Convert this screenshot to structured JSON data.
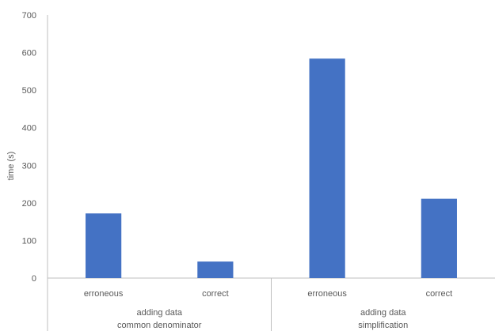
{
  "chart_data": {
    "type": "bar",
    "ylabel": "time (s)",
    "ylim": [
      0,
      700
    ],
    "yticks": [
      0,
      100,
      200,
      300,
      400,
      500,
      600,
      700
    ],
    "grid": false,
    "legend": "none",
    "bar_color": "#4472C4",
    "axis_color": "#BFBFBF",
    "text_color": "#595959",
    "groups": [
      {
        "label_line1": "adding data",
        "label_line2": "common denominator",
        "categories": [
          "erroneous",
          "correct"
        ],
        "values": [
          172,
          44
        ]
      },
      {
        "label_line1": "adding data",
        "label_line2": "simplification",
        "categories": [
          "erroneous",
          "correct"
        ],
        "values": [
          584,
          211
        ]
      }
    ]
  }
}
